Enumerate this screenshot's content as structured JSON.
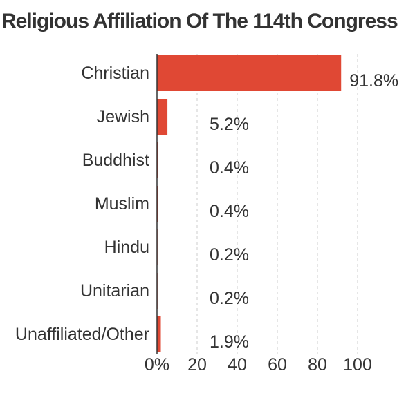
{
  "chart_data": {
    "type": "bar",
    "orientation": "horizontal",
    "title": "Religious Affiliation Of The 114th Congress",
    "categories": [
      "Christian",
      "Jewish",
      "Buddhist",
      "Muslim",
      "Hindu",
      "Unitarian",
      "Unaffiliated/Other"
    ],
    "values": [
      91.8,
      5.2,
      0.4,
      0.4,
      0.2,
      0.2,
      1.9
    ],
    "value_labels": [
      "91.8%",
      "5.2%",
      "0.4%",
      "0.4%",
      "0.2%",
      "0.2%",
      "1.9%"
    ],
    "xlim": [
      0,
      100
    ],
    "xticks": [
      0,
      20,
      40,
      60,
      80,
      100
    ],
    "xtick_labels": [
      "0%",
      "20",
      "40",
      "60",
      "80",
      "100"
    ],
    "grid": true,
    "bar_color": "#e04834",
    "grid_color": "#cccccc"
  }
}
